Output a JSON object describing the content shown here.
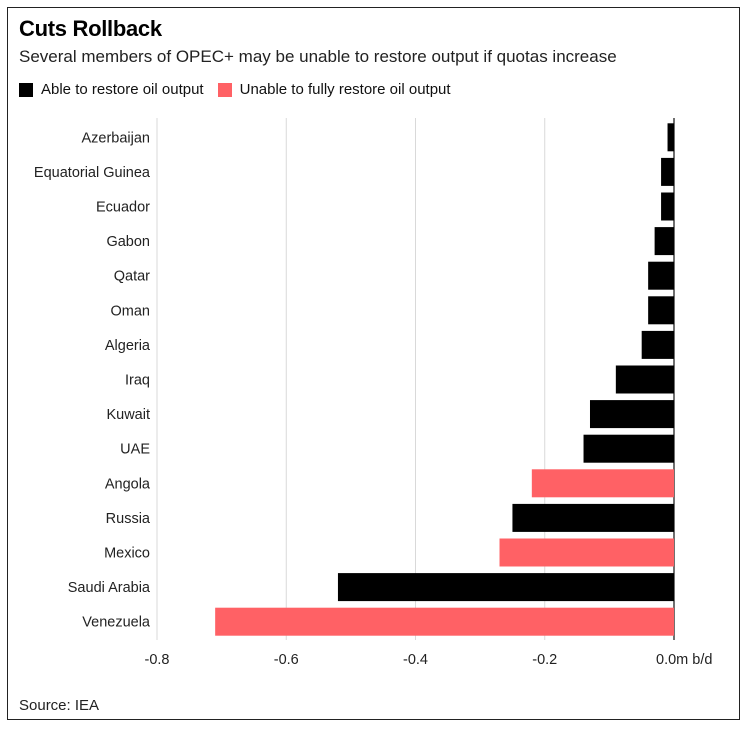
{
  "colors": {
    "able": "#000000",
    "unable": "#ff6165",
    "grid": "#d9d9d9",
    "axis": "#222222"
  },
  "chart_data": {
    "type": "bar",
    "orientation": "horizontal",
    "title": "Cuts Rollback",
    "subtitle": "Several members of OPEC+ may be unable to restore output if quotas increase",
    "legend": [
      {
        "key": "able",
        "label": "Able to restore oil output"
      },
      {
        "key": "unable",
        "label": "Unable to fully restore oil output"
      }
    ],
    "categories": [
      "Azerbaijan",
      "Equatorial Guinea",
      "Ecuador",
      "Gabon",
      "Qatar",
      "Oman",
      "Algeria",
      "Iraq",
      "Kuwait",
      "UAE",
      "Angola",
      "Russia",
      "Mexico",
      "Saudi Arabia",
      "Venezuela"
    ],
    "values": [
      -0.01,
      -0.02,
      -0.02,
      -0.03,
      -0.04,
      -0.04,
      -0.05,
      -0.09,
      -0.13,
      -0.14,
      -0.22,
      -0.25,
      -0.27,
      -0.52,
      -0.71
    ],
    "status": [
      "able",
      "able",
      "able",
      "able",
      "able",
      "able",
      "able",
      "able",
      "able",
      "able",
      "unable",
      "able",
      "unable",
      "able",
      "unable"
    ],
    "xlim": [
      -0.8,
      0
    ],
    "xticks": [
      -0.8,
      -0.6,
      -0.4,
      -0.2,
      0
    ],
    "xtick_labels": [
      "-0.8",
      "-0.6",
      "-0.4",
      "-0.2",
      "0.0m b/d"
    ],
    "grid": true,
    "legend_position": "top-left"
  },
  "source": "Source: IEA"
}
